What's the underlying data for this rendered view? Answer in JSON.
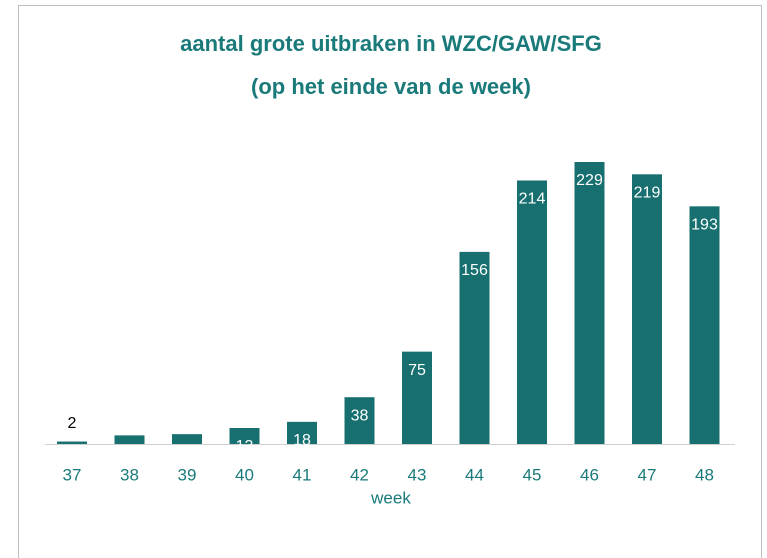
{
  "chart_data": {
    "type": "bar",
    "title": [
      "aantal grote uitbraken in WZC/GAW/SFG",
      "(op het einde van de week)"
    ],
    "x_label": "week",
    "categories": [
      "37",
      "38",
      "39",
      "40",
      "41",
      "42",
      "43",
      "44",
      "45",
      "46",
      "47",
      "48"
    ],
    "values": [
      2,
      7,
      8,
      13,
      18,
      38,
      75,
      156,
      214,
      229,
      219,
      193
    ],
    "color": "#17706f"
  }
}
